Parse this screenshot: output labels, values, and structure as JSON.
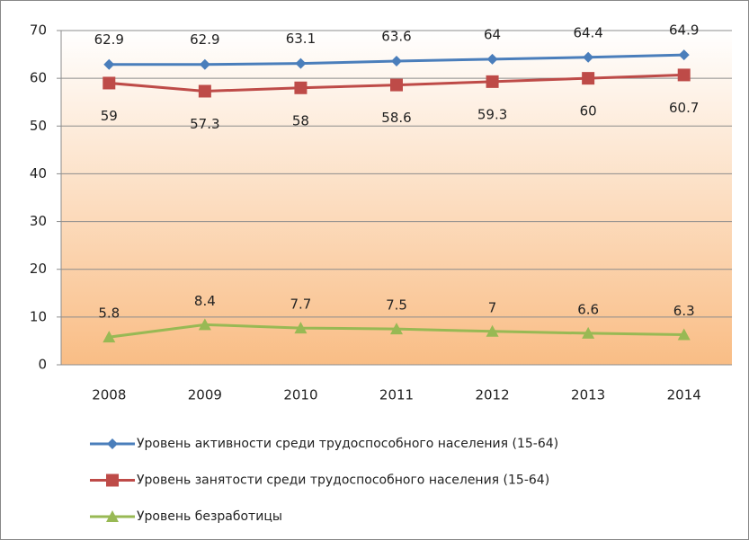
{
  "chart_data": {
    "type": "line",
    "categories": [
      "2008",
      "2009",
      "2010",
      "2011",
      "2012",
      "2013",
      "2014"
    ],
    "series": [
      {
        "name": "Уровень активности среди трудоспособного населения (15-64)",
        "color": "#4a7ebb",
        "marker": "diamond",
        "values": [
          62.9,
          62.9,
          63.1,
          63.6,
          64,
          64.4,
          64.9
        ]
      },
      {
        "name": "Уровень занятости среди трудоспособного населения (15-64)",
        "color": "#be4b48",
        "marker": "square",
        "values": [
          59,
          57.3,
          58,
          58.6,
          59.3,
          60,
          60.7
        ]
      },
      {
        "name": "Уровень безработицы",
        "color": "#98b954",
        "marker": "triangle",
        "values": [
          5.8,
          8.4,
          7.7,
          7.5,
          7,
          6.6,
          6.3
        ]
      }
    ],
    "ylim": [
      0,
      70
    ],
    "yticks": [
      0,
      10,
      20,
      30,
      40,
      50,
      60,
      70
    ],
    "grid": true,
    "legend": "bottom"
  }
}
